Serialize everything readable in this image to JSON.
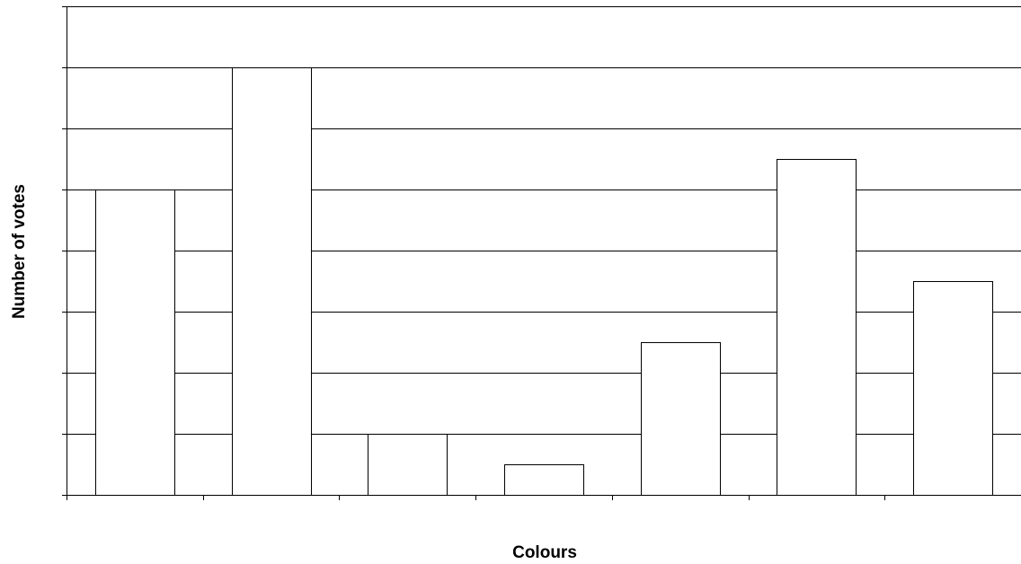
{
  "chart_data": {
    "type": "bar",
    "title": "",
    "xlabel": "Colours",
    "ylabel": "Number of votes",
    "categories": [
      "",
      "",
      "",
      "",
      "",
      "",
      ""
    ],
    "values": [
      5,
      7,
      1,
      0.5,
      2.5,
      5.5,
      3.5
    ],
    "ylim": [
      0,
      8
    ],
    "ytick_step": 1,
    "grid": true,
    "legend": "none",
    "colors": {
      "bar_fill": "#ffffff",
      "bar_stroke": "#000000",
      "grid": "#000000",
      "background": "#ffffff"
    }
  }
}
